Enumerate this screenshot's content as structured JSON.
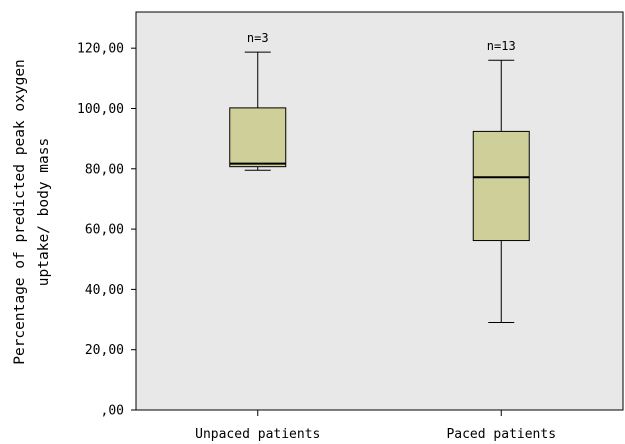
{
  "chart_data": {
    "type": "boxplot",
    "title": "",
    "xlabel": "",
    "ylabel_lines": [
      "Percentage of predicted peak oxygen",
      "uptake/ body mass"
    ],
    "ylim": [
      0,
      132
    ],
    "yticks": [
      0,
      20,
      40,
      60,
      80,
      100,
      120
    ],
    "ytick_labels": [
      ",00",
      "20,00",
      "40,00",
      "60,00",
      "80,00",
      "100,00",
      "120,00"
    ],
    "grid": false,
    "categories": [
      "Unpaced patients",
      "Paced patients"
    ],
    "boxes": [
      {
        "category": "Unpaced patients",
        "min": 79.5,
        "q1": 80.7,
        "median": 81.7,
        "q3": 100.2,
        "max": 118.7,
        "annotation": "n=3"
      },
      {
        "category": "Paced patients",
        "min": 29.0,
        "q1": 56.2,
        "median": 77.2,
        "q3": 92.4,
        "max": 116.0,
        "annotation": "n=13"
      }
    ],
    "colors": {
      "plot_background": "#e8e8e8",
      "box_fill": "#cfcf9a",
      "line": "#000000"
    }
  }
}
